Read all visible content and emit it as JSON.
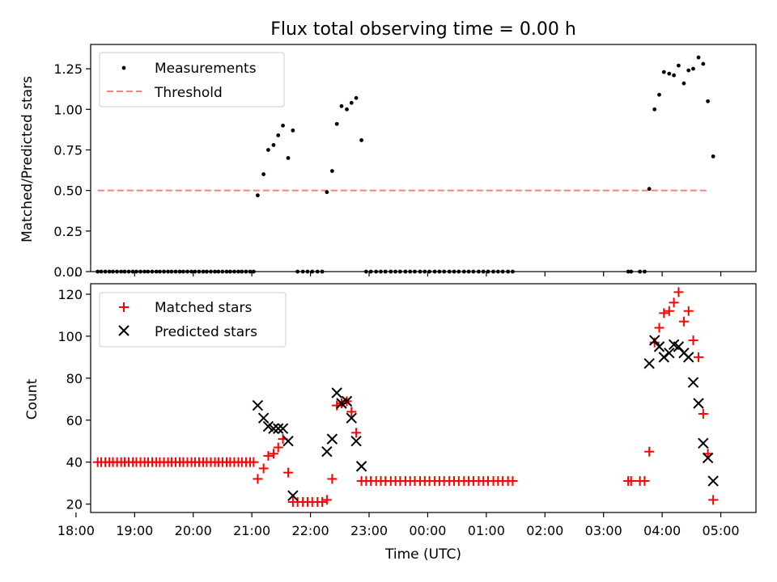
{
  "chart_data": [
    {
      "type": "scatter",
      "title": "Flux total observing time = 0.00 h",
      "xlabel": "",
      "ylabel": "Matched/Predicted stars",
      "xlim": [
        18.25,
        29.6
      ],
      "ylim": [
        0,
        1.4
      ],
      "yticks": [
        "0.00",
        "0.25",
        "0.50",
        "0.75",
        "1.00",
        "1.25"
      ],
      "ytick_values": [
        0,
        0.25,
        0.5,
        0.75,
        1.0,
        1.25
      ],
      "legend": [
        "Measurements",
        "Threshold"
      ],
      "legend_position": "top-left",
      "threshold": {
        "value": 0.5,
        "x_range": [
          18.37,
          28.8
        ],
        "color": "#ff7f7f"
      },
      "series": [
        {
          "name": "Measurements",
          "color": "#000000",
          "points": [
            [
              18.37,
              0
            ],
            [
              18.43,
              0
            ],
            [
              18.5,
              0
            ],
            [
              18.57,
              0
            ],
            [
              18.63,
              0
            ],
            [
              18.7,
              0
            ],
            [
              18.77,
              0
            ],
            [
              18.83,
              0
            ],
            [
              18.9,
              0
            ],
            [
              18.97,
              0
            ],
            [
              19.03,
              0
            ],
            [
              19.1,
              0
            ],
            [
              19.17,
              0
            ],
            [
              19.23,
              0
            ],
            [
              19.3,
              0
            ],
            [
              19.37,
              0
            ],
            [
              19.43,
              0
            ],
            [
              19.5,
              0
            ],
            [
              19.57,
              0
            ],
            [
              19.63,
              0
            ],
            [
              19.7,
              0
            ],
            [
              19.77,
              0
            ],
            [
              19.83,
              0
            ],
            [
              19.9,
              0
            ],
            [
              19.97,
              0
            ],
            [
              20.03,
              0
            ],
            [
              20.1,
              0
            ],
            [
              20.17,
              0
            ],
            [
              20.23,
              0
            ],
            [
              20.3,
              0
            ],
            [
              20.37,
              0
            ],
            [
              20.43,
              0
            ],
            [
              20.5,
              0
            ],
            [
              20.57,
              0
            ],
            [
              20.63,
              0
            ],
            [
              20.7,
              0
            ],
            [
              20.77,
              0
            ],
            [
              20.83,
              0
            ],
            [
              20.9,
              0
            ],
            [
              20.97,
              0
            ],
            [
              21.03,
              0
            ],
            [
              21.1,
              0.47
            ],
            [
              21.2,
              0.6
            ],
            [
              21.28,
              0.75
            ],
            [
              21.37,
              0.78
            ],
            [
              21.45,
              0.84
            ],
            [
              21.53,
              0.9
            ],
            [
              21.62,
              0.7
            ],
            [
              21.7,
              0.87
            ],
            [
              21.78,
              0
            ],
            [
              21.87,
              0
            ],
            [
              21.95,
              0
            ],
            [
              22.03,
              0
            ],
            [
              22.12,
              0
            ],
            [
              22.2,
              0
            ],
            [
              22.28,
              0.49
            ],
            [
              22.37,
              0.62
            ],
            [
              22.45,
              0.91
            ],
            [
              22.53,
              1.02
            ],
            [
              22.62,
              1.0
            ],
            [
              22.7,
              1.04
            ],
            [
              22.78,
              1.07
            ],
            [
              22.87,
              0.81
            ],
            [
              22.95,
              0
            ],
            [
              23.03,
              0
            ],
            [
              23.12,
              0
            ],
            [
              23.2,
              0
            ],
            [
              23.28,
              0
            ],
            [
              23.37,
              0
            ],
            [
              23.45,
              0
            ],
            [
              23.53,
              0
            ],
            [
              23.62,
              0
            ],
            [
              23.7,
              0
            ],
            [
              23.78,
              0
            ],
            [
              23.87,
              0
            ],
            [
              23.95,
              0
            ],
            [
              24.03,
              0
            ],
            [
              24.12,
              0
            ],
            [
              24.2,
              0
            ],
            [
              24.28,
              0
            ],
            [
              24.37,
              0
            ],
            [
              24.45,
              0
            ],
            [
              24.53,
              0
            ],
            [
              24.62,
              0
            ],
            [
              24.7,
              0
            ],
            [
              24.78,
              0
            ],
            [
              24.87,
              0
            ],
            [
              24.95,
              0
            ],
            [
              25.03,
              0
            ],
            [
              25.12,
              0
            ],
            [
              25.2,
              0
            ],
            [
              25.28,
              0
            ],
            [
              25.37,
              0
            ],
            [
              25.45,
              0
            ],
            [
              27.42,
              0
            ],
            [
              27.47,
              0
            ],
            [
              27.62,
              0
            ],
            [
              27.7,
              0
            ],
            [
              27.78,
              0.51
            ],
            [
              27.87,
              1.0
            ],
            [
              27.95,
              1.09
            ],
            [
              28.03,
              1.23
            ],
            [
              28.12,
              1.22
            ],
            [
              28.2,
              1.21
            ],
            [
              28.28,
              1.27
            ],
            [
              28.37,
              1.16
            ],
            [
              28.45,
              1.24
            ],
            [
              28.53,
              1.25
            ],
            [
              28.62,
              1.32
            ],
            [
              28.7,
              1.28
            ],
            [
              28.78,
              1.05
            ],
            [
              28.87,
              0.71
            ]
          ]
        }
      ]
    },
    {
      "type": "scatter",
      "title": "",
      "xlabel": "Time (UTC)",
      "ylabel": "Count",
      "xlim": [
        18.25,
        29.6
      ],
      "ylim": [
        16,
        125
      ],
      "yticks": [
        "20",
        "40",
        "60",
        "80",
        "100",
        "120"
      ],
      "ytick_values": [
        20,
        40,
        60,
        80,
        100,
        120
      ],
      "xticks": [
        "18:00",
        "19:00",
        "20:00",
        "21:00",
        "22:00",
        "23:00",
        "00:00",
        "01:00",
        "02:00",
        "03:00",
        "04:00",
        "05:00"
      ],
      "xtick_values": [
        18,
        19,
        20,
        21,
        22,
        23,
        24,
        25,
        26,
        27,
        28,
        29
      ],
      "legend": [
        "Matched stars",
        "Predicted stars"
      ],
      "legend_position": "top-left",
      "series": [
        {
          "name": "Matched stars",
          "marker": "plus",
          "color": "#ff0000",
          "points": [
            [
              18.37,
              40
            ],
            [
              18.43,
              40
            ],
            [
              18.5,
              40
            ],
            [
              18.57,
              40
            ],
            [
              18.63,
              40
            ],
            [
              18.7,
              40
            ],
            [
              18.77,
              40
            ],
            [
              18.83,
              40
            ],
            [
              18.9,
              40
            ],
            [
              18.97,
              40
            ],
            [
              19.03,
              40
            ],
            [
              19.1,
              40
            ],
            [
              19.17,
              40
            ],
            [
              19.23,
              40
            ],
            [
              19.3,
              40
            ],
            [
              19.37,
              40
            ],
            [
              19.43,
              40
            ],
            [
              19.5,
              40
            ],
            [
              19.57,
              40
            ],
            [
              19.63,
              40
            ],
            [
              19.7,
              40
            ],
            [
              19.77,
              40
            ],
            [
              19.83,
              40
            ],
            [
              19.9,
              40
            ],
            [
              19.97,
              40
            ],
            [
              20.03,
              40
            ],
            [
              20.1,
              40
            ],
            [
              20.17,
              40
            ],
            [
              20.23,
              40
            ],
            [
              20.3,
              40
            ],
            [
              20.37,
              40
            ],
            [
              20.43,
              40
            ],
            [
              20.5,
              40
            ],
            [
              20.57,
              40
            ],
            [
              20.63,
              40
            ],
            [
              20.7,
              40
            ],
            [
              20.77,
              40
            ],
            [
              20.83,
              40
            ],
            [
              20.9,
              40
            ],
            [
              20.97,
              40
            ],
            [
              21.03,
              40
            ],
            [
              21.1,
              32
            ],
            [
              21.2,
              37
            ],
            [
              21.28,
              43
            ],
            [
              21.37,
              44
            ],
            [
              21.45,
              47
            ],
            [
              21.53,
              51
            ],
            [
              21.62,
              35
            ],
            [
              21.7,
              21
            ],
            [
              21.78,
              21
            ],
            [
              21.87,
              21
            ],
            [
              21.95,
              21
            ],
            [
              22.03,
              21
            ],
            [
              22.12,
              21
            ],
            [
              22.2,
              21
            ],
            [
              22.28,
              22
            ],
            [
              22.37,
              32
            ],
            [
              22.45,
              67
            ],
            [
              22.53,
              68
            ],
            [
              22.62,
              69
            ],
            [
              22.7,
              64
            ],
            [
              22.78,
              54
            ],
            [
              22.87,
              31
            ],
            [
              22.95,
              31
            ],
            [
              23.03,
              31
            ],
            [
              23.12,
              31
            ],
            [
              23.2,
              31
            ],
            [
              23.28,
              31
            ],
            [
              23.37,
              31
            ],
            [
              23.45,
              31
            ],
            [
              23.53,
              31
            ],
            [
              23.62,
              31
            ],
            [
              23.7,
              31
            ],
            [
              23.78,
              31
            ],
            [
              23.87,
              31
            ],
            [
              23.95,
              31
            ],
            [
              24.03,
              31
            ],
            [
              24.12,
              31
            ],
            [
              24.2,
              31
            ],
            [
              24.28,
              31
            ],
            [
              24.37,
              31
            ],
            [
              24.45,
              31
            ],
            [
              24.53,
              31
            ],
            [
              24.62,
              31
            ],
            [
              24.7,
              31
            ],
            [
              24.78,
              31
            ],
            [
              24.87,
              31
            ],
            [
              24.95,
              31
            ],
            [
              25.03,
              31
            ],
            [
              25.12,
              31
            ],
            [
              25.2,
              31
            ],
            [
              25.28,
              31
            ],
            [
              25.37,
              31
            ],
            [
              25.45,
              31
            ],
            [
              27.42,
              31
            ],
            [
              27.47,
              31
            ],
            [
              27.62,
              31
            ],
            [
              27.7,
              31
            ],
            [
              27.78,
              45
            ],
            [
              27.87,
              97
            ],
            [
              27.95,
              104
            ],
            [
              28.03,
              111
            ],
            [
              28.12,
              112
            ],
            [
              28.2,
              116
            ],
            [
              28.28,
              121
            ],
            [
              28.37,
              107
            ],
            [
              28.45,
              112
            ],
            [
              28.53,
              98
            ],
            [
              28.62,
              90
            ],
            [
              28.7,
              63
            ],
            [
              28.78,
              44
            ],
            [
              28.87,
              22
            ]
          ]
        },
        {
          "name": "Predicted stars",
          "marker": "x",
          "color": "#000000",
          "points": [
            [
              21.1,
              67
            ],
            [
              21.2,
              61
            ],
            [
              21.28,
              57
            ],
            [
              21.37,
              56
            ],
            [
              21.45,
              56
            ],
            [
              21.53,
              56
            ],
            [
              21.62,
              50
            ],
            [
              21.7,
              24
            ],
            [
              22.28,
              45
            ],
            [
              22.37,
              51
            ],
            [
              22.45,
              73
            ],
            [
              22.53,
              68
            ],
            [
              22.62,
              69
            ],
            [
              22.7,
              61
            ],
            [
              22.78,
              50
            ],
            [
              22.87,
              38
            ],
            [
              27.78,
              87
            ],
            [
              27.87,
              98
            ],
            [
              27.95,
              95
            ],
            [
              28.03,
              90
            ],
            [
              28.12,
              92
            ],
            [
              28.2,
              96
            ],
            [
              28.28,
              95
            ],
            [
              28.37,
              92
            ],
            [
              28.45,
              90
            ],
            [
              28.53,
              78
            ],
            [
              28.62,
              68
            ],
            [
              28.7,
              49
            ],
            [
              28.78,
              42
            ],
            [
              28.87,
              31
            ]
          ]
        }
      ]
    }
  ]
}
